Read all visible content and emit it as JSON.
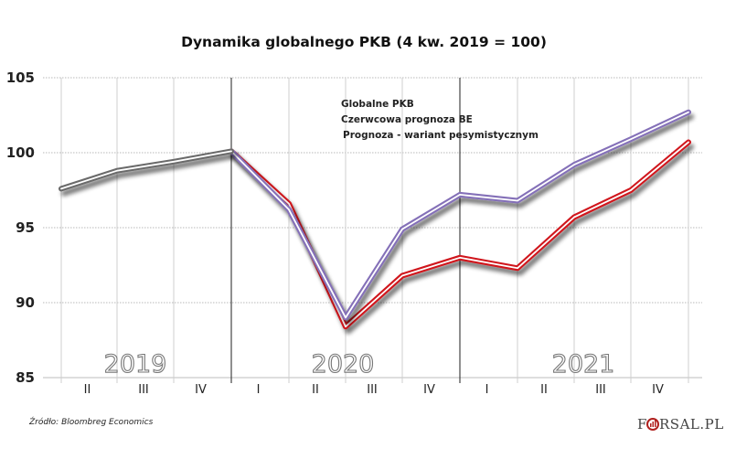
{
  "chart_data": {
    "type": "line",
    "title": "Dynamika globalnego PKB (4 kw. 2019 = 100)",
    "xlabel": "",
    "ylabel": "",
    "ylim": [
      85,
      105
    ],
    "yticks": [
      85,
      90,
      95,
      100,
      105
    ],
    "ytick_labels": [
      "85",
      "90",
      "95",
      "100",
      "105"
    ],
    "grid": "horizontal dotted, vertical solid",
    "quarter_labels": [
      "II",
      "III",
      "IV",
      "I",
      "II",
      "III",
      "IV",
      "I",
      "II",
      "III",
      "IV"
    ],
    "year_labels": [
      "2019",
      "2020",
      "2021"
    ],
    "legend_position": "top-center",
    "series": [
      {
        "name": "Globalne PKB",
        "color": "#6b6b6b",
        "start_index": 0,
        "values": [
          97.6,
          98.8,
          99.4,
          100.1
        ]
      },
      {
        "name": "Czerwcowa prognoza BE",
        "color": "#8470b8",
        "start_index": 3,
        "values": [
          100.1,
          96.2,
          89.0,
          94.9,
          97.2,
          96.8,
          99.2,
          100.9,
          102.7
        ]
      },
      {
        "name": "Prognoza - wariant pesymistycznym",
        "color": "#d0141e",
        "start_index": 3,
        "values": [
          100.1,
          96.6,
          88.4,
          91.8,
          93.0,
          92.3,
          95.7,
          97.5,
          100.7
        ]
      }
    ]
  },
  "footer": {
    "source": "Źródło:  Bloombreg Economics",
    "logo": "F RSAL.PL"
  }
}
